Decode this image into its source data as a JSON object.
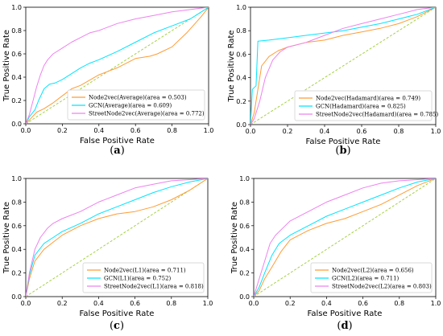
{
  "chart_data": [
    {
      "type": "line",
      "subfigure_label": "(a)",
      "xlabel": "False Positive Rate",
      "ylabel": "True Positive Rate",
      "xlim": [
        0,
        1
      ],
      "ylim": [
        0,
        1
      ],
      "xticks": [
        "0.0",
        "0.2",
        "0.4",
        "0.6",
        "0.8",
        "1.0"
      ],
      "yticks": [
        "0.0",
        "0.2",
        "0.4",
        "0.6",
        "0.8",
        "1.0"
      ],
      "grid": false,
      "legend_position": "lower-right",
      "baseline": {
        "style": "dashed",
        "color": "#9ACD32",
        "x": [
          0,
          1
        ],
        "y": [
          0,
          1
        ]
      },
      "series": [
        {
          "name": "Node2vec(Average)(area = 0.503)",
          "color": "#FF9C35",
          "x": [
            0,
            0.03,
            0.06,
            0.1,
            0.15,
            0.2,
            0.25,
            0.3,
            0.4,
            0.5,
            0.6,
            0.68,
            0.72,
            0.8,
            0.88,
            0.92,
            0.96,
            1.0
          ],
          "y": [
            0,
            0.05,
            0.1,
            0.13,
            0.18,
            0.24,
            0.3,
            0.33,
            0.42,
            0.48,
            0.56,
            0.58,
            0.6,
            0.66,
            0.78,
            0.85,
            0.92,
            1.0
          ]
        },
        {
          "name": "GCN(Average)(area = 0.609)",
          "color": "#00E5FF",
          "x": [
            0,
            0.02,
            0.05,
            0.07,
            0.1,
            0.13,
            0.16,
            0.2,
            0.25,
            0.3,
            0.35,
            0.4,
            0.5,
            0.6,
            0.7,
            0.8,
            0.9,
            0.95,
            1.0
          ],
          "y": [
            0,
            0.06,
            0.12,
            0.2,
            0.3,
            0.34,
            0.35,
            0.38,
            0.43,
            0.48,
            0.52,
            0.55,
            0.62,
            0.7,
            0.78,
            0.84,
            0.9,
            0.95,
            1.0
          ]
        },
        {
          "name": "StreetNode2vec(Average)(area = 0.772)",
          "color": "#EE82EE",
          "x": [
            0,
            0.02,
            0.04,
            0.06,
            0.08,
            0.1,
            0.12,
            0.15,
            0.2,
            0.25,
            0.3,
            0.35,
            0.4,
            0.5,
            0.6,
            0.7,
            0.8,
            0.9,
            0.95,
            1.0
          ],
          "y": [
            0,
            0.08,
            0.2,
            0.32,
            0.42,
            0.5,
            0.55,
            0.6,
            0.65,
            0.7,
            0.74,
            0.78,
            0.8,
            0.86,
            0.9,
            0.93,
            0.96,
            0.98,
            0.99,
            1.0
          ]
        }
      ]
    },
    {
      "type": "line",
      "subfigure_label": "(b)",
      "xlabel": "False Positive Rate",
      "ylabel": "True Positive Rate",
      "xlim": [
        0,
        1
      ],
      "ylim": [
        0,
        1
      ],
      "xticks": [
        "0.0",
        "0.2",
        "0.4",
        "0.6",
        "0.8",
        "1.0"
      ],
      "yticks": [
        "0.0",
        "0.2",
        "0.4",
        "0.6",
        "0.8",
        "1.0"
      ],
      "grid": false,
      "legend_position": "lower-right",
      "baseline": {
        "style": "dashed",
        "color": "#9ACD32",
        "x": [
          0,
          1
        ],
        "y": [
          0,
          1
        ]
      },
      "series": [
        {
          "name": "Node2vec(Hadamard)(area = 0.749)",
          "color": "#FF9C35",
          "x": [
            0,
            0.02,
            0.04,
            0.06,
            0.1,
            0.15,
            0.2,
            0.3,
            0.4,
            0.5,
            0.6,
            0.7,
            0.8,
            0.9,
            1.0
          ],
          "y": [
            0,
            0.1,
            0.3,
            0.5,
            0.58,
            0.63,
            0.66,
            0.7,
            0.72,
            0.76,
            0.79,
            0.82,
            0.86,
            0.92,
            1.0
          ]
        },
        {
          "name": "GCN(Hadamard)(area = 0.825)",
          "color": "#00E5FF",
          "x": [
            0,
            0.01,
            0.03,
            0.04,
            0.1,
            0.2,
            0.3,
            0.4,
            0.5,
            0.6,
            0.7,
            0.8,
            0.9,
            1.0
          ],
          "y": [
            0,
            0.3,
            0.33,
            0.71,
            0.72,
            0.74,
            0.76,
            0.78,
            0.8,
            0.83,
            0.86,
            0.9,
            0.94,
            1.0
          ]
        },
        {
          "name": "StreetNode2vec(Hadamard)(area = 0.785)",
          "color": "#EE82EE",
          "x": [
            0,
            0.02,
            0.05,
            0.08,
            0.12,
            0.16,
            0.2,
            0.3,
            0.4,
            0.5,
            0.6,
            0.7,
            0.8,
            0.9,
            1.0
          ],
          "y": [
            0,
            0.05,
            0.2,
            0.4,
            0.55,
            0.62,
            0.66,
            0.7,
            0.76,
            0.82,
            0.86,
            0.9,
            0.94,
            0.98,
            1.0
          ]
        }
      ]
    },
    {
      "type": "line",
      "subfigure_label": "(c)",
      "xlabel": "False Positive Rate",
      "ylabel": "True Positive Rate",
      "xlim": [
        0,
        1
      ],
      "ylim": [
        0,
        1
      ],
      "xticks": [
        "0.0",
        "0.2",
        "0.4",
        "0.6",
        "0.8",
        "1.0"
      ],
      "yticks": [
        "0.0",
        "0.2",
        "0.4",
        "0.6",
        "0.8",
        "1.0"
      ],
      "grid": false,
      "legend_position": "lower-right",
      "baseline": {
        "style": "dashed",
        "color": "#9ACD32",
        "x": [
          0,
          1
        ],
        "y": [
          0,
          1
        ]
      },
      "series": [
        {
          "name": "Node2vec(L1)(area = 0.711)",
          "color": "#FF9C35",
          "x": [
            0,
            0.02,
            0.05,
            0.1,
            0.15,
            0.2,
            0.3,
            0.4,
            0.5,
            0.6,
            0.7,
            0.8,
            0.9,
            1.0
          ],
          "y": [
            0,
            0.15,
            0.3,
            0.4,
            0.46,
            0.52,
            0.6,
            0.66,
            0.7,
            0.72,
            0.76,
            0.82,
            0.9,
            1.0
          ]
        },
        {
          "name": "GCN(L1)(area = 0.752)",
          "color": "#00E5FF",
          "x": [
            0,
            0.02,
            0.05,
            0.1,
            0.15,
            0.2,
            0.3,
            0.4,
            0.5,
            0.6,
            0.7,
            0.8,
            0.9,
            1.0
          ],
          "y": [
            0,
            0.18,
            0.35,
            0.45,
            0.5,
            0.55,
            0.62,
            0.7,
            0.76,
            0.82,
            0.88,
            0.93,
            0.97,
            1.0
          ]
        },
        {
          "name": "StreetNode2vec(L1)(area = 0.818)",
          "color": "#EE82EE",
          "x": [
            0,
            0.02,
            0.05,
            0.08,
            0.12,
            0.15,
            0.2,
            0.3,
            0.4,
            0.5,
            0.6,
            0.7,
            0.8,
            0.9,
            1.0
          ],
          "y": [
            0,
            0.2,
            0.4,
            0.5,
            0.58,
            0.62,
            0.66,
            0.72,
            0.8,
            0.86,
            0.92,
            0.95,
            0.98,
            0.99,
            1.0
          ]
        }
      ]
    },
    {
      "type": "line",
      "subfigure_label": "(d)",
      "xlabel": "False Positive Rate",
      "ylabel": "True Positive Rate",
      "xlim": [
        0,
        1
      ],
      "ylim": [
        0,
        1
      ],
      "xticks": [
        "0.0",
        "0.2",
        "0.4",
        "0.6",
        "0.8",
        "1.0"
      ],
      "yticks": [
        "0.0",
        "0.2",
        "0.4",
        "0.6",
        "0.8",
        "1.0"
      ],
      "grid": false,
      "legend_position": "lower-right",
      "baseline": {
        "style": "dashed",
        "color": "#9ACD32",
        "x": [
          0,
          1
        ],
        "y": [
          0,
          1
        ]
      },
      "series": [
        {
          "name": "Node2vec(L2)(area = 0.656)",
          "color": "#FF9C35",
          "x": [
            0,
            0.03,
            0.06,
            0.1,
            0.15,
            0.2,
            0.3,
            0.4,
            0.5,
            0.6,
            0.7,
            0.8,
            0.9,
            1.0
          ],
          "y": [
            0,
            0.05,
            0.15,
            0.25,
            0.38,
            0.48,
            0.56,
            0.62,
            0.66,
            0.72,
            0.78,
            0.86,
            0.94,
            1.0
          ]
        },
        {
          "name": "GCN(L2)(area = 0.711)",
          "color": "#00E5FF",
          "x": [
            0,
            0.03,
            0.06,
            0.1,
            0.14,
            0.2,
            0.3,
            0.4,
            0.5,
            0.6,
            0.7,
            0.8,
            0.9,
            1.0
          ],
          "y": [
            0,
            0.08,
            0.2,
            0.35,
            0.45,
            0.52,
            0.6,
            0.68,
            0.74,
            0.8,
            0.86,
            0.92,
            0.97,
            1.0
          ]
        },
        {
          "name": "StreetNode2vec(L2)(area = 0.803)",
          "color": "#EE82EE",
          "x": [
            0,
            0.03,
            0.06,
            0.09,
            0.12,
            0.16,
            0.2,
            0.3,
            0.4,
            0.5,
            0.6,
            0.7,
            0.8,
            0.9,
            1.0
          ],
          "y": [
            0,
            0.15,
            0.3,
            0.45,
            0.52,
            0.58,
            0.64,
            0.72,
            0.8,
            0.86,
            0.92,
            0.96,
            0.98,
            0.99,
            1.0
          ]
        }
      ]
    }
  ]
}
